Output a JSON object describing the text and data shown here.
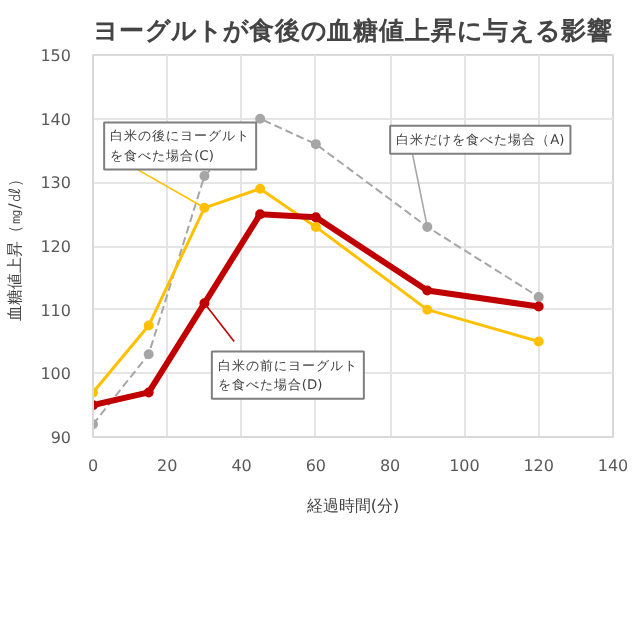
{
  "chart_data": {
    "type": "line",
    "title": "ヨーグルトが食後の血糖値上昇に与える影響",
    "xlabel": "経過時間(分)",
    "ylabel": "血糖値上昇（㎎/㎗）",
    "x": [
      0,
      15,
      30,
      45,
      60,
      90,
      120
    ],
    "xlim": [
      0,
      140
    ],
    "xticks": [
      0,
      20,
      40,
      60,
      80,
      100,
      120,
      140
    ],
    "ylim": [
      90,
      150
    ],
    "yticks": [
      90,
      100,
      110,
      120,
      130,
      140,
      150
    ],
    "grid": true,
    "marker": "circle",
    "series": [
      {
        "name": "白米だけを食べた場合（A)",
        "color": "#a6a6a6",
        "line_style": "dashed",
        "values": [
          92,
          103,
          131,
          140,
          136,
          123,
          112
        ]
      },
      {
        "name": "白米の後にヨーグルトを食べた場合(C)",
        "color": "#ffc000",
        "line_style": "solid",
        "values": [
          97,
          107.5,
          126,
          129,
          123,
          110,
          105
        ]
      },
      {
        "name": "白米の前にヨーグルトを食べた場合(D)",
        "color": "#c00000",
        "line_style": "solid",
        "values": [
          95,
          97,
          111,
          125,
          124.5,
          113,
          110.5
        ]
      }
    ]
  }
}
